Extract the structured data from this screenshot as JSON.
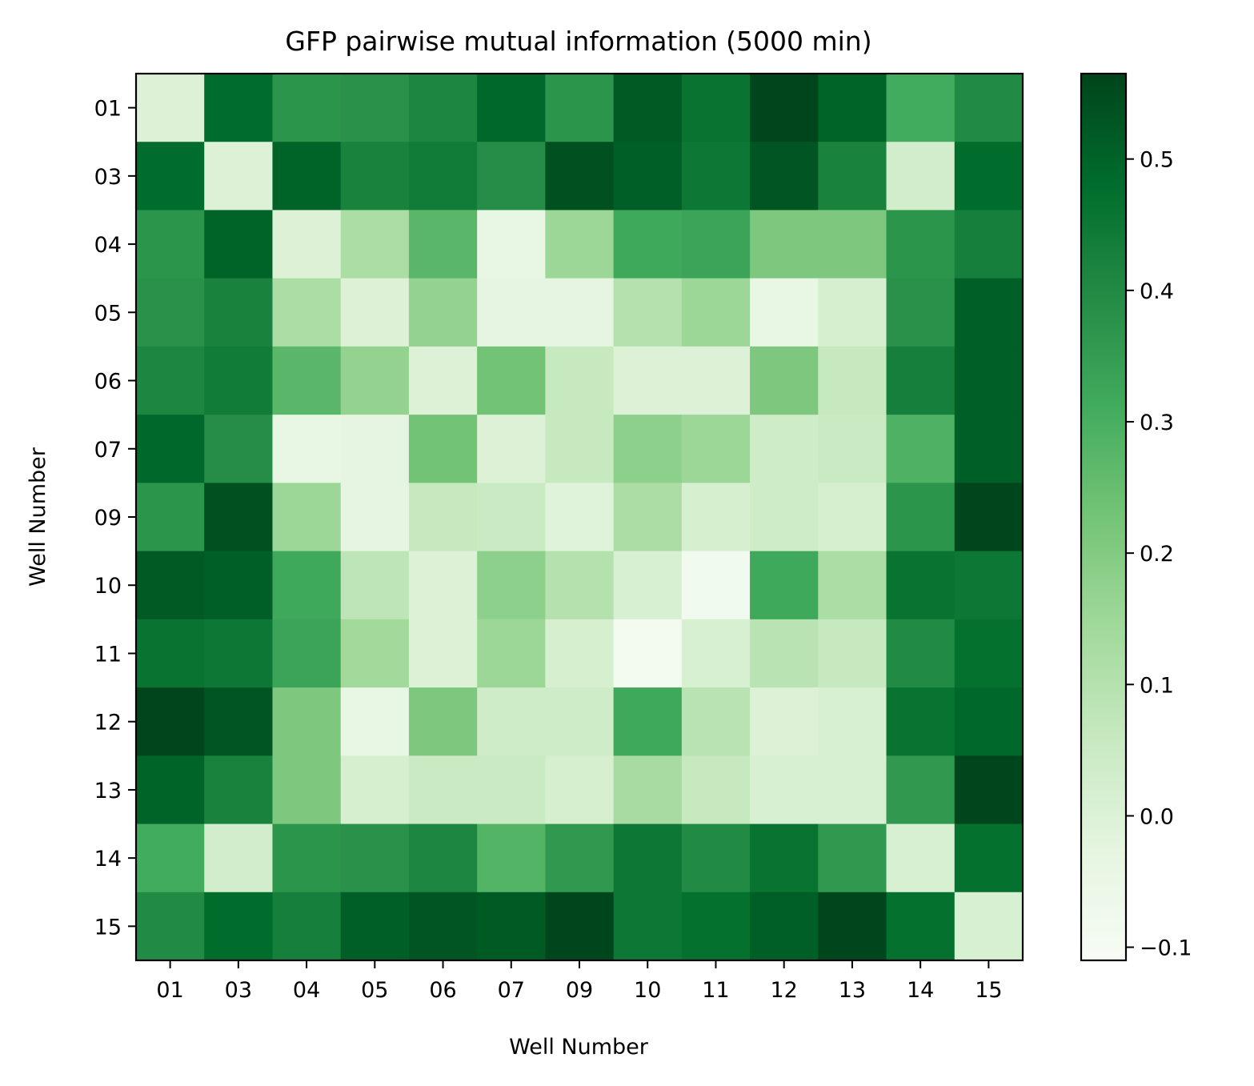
{
  "chart_data": {
    "type": "heatmap",
    "title": "GFP pairwise mutual information (5000 min)",
    "xlabel": "Well Number",
    "ylabel": "Well Number",
    "categories": [
      "01",
      "03",
      "04",
      "05",
      "06",
      "07",
      "09",
      "10",
      "11",
      "12",
      "13",
      "14",
      "15"
    ],
    "colormap": "Greens",
    "colors": [
      "#f7fcf5",
      "#e5f5e0",
      "#c7e9c0",
      "#a1d99b",
      "#74c476",
      "#41ab5d",
      "#238b45",
      "#006d2c",
      "#00441b"
    ],
    "vmin": -0.11,
    "vmax": 0.565,
    "colorbar_ticks": [
      {
        "value": 0.5,
        "label": "0.5"
      },
      {
        "value": 0.4,
        "label": "0.4"
      },
      {
        "value": 0.3,
        "label": "0.3"
      },
      {
        "value": 0.2,
        "label": "0.2"
      },
      {
        "value": 0.1,
        "label": "0.1"
      },
      {
        "value": 0.0,
        "label": "0.0"
      },
      {
        "value": -0.1,
        "label": "−0.1"
      }
    ],
    "values": [
      [
        0.0,
        0.48,
        0.37,
        0.38,
        0.41,
        0.49,
        0.37,
        0.52,
        0.46,
        0.56,
        0.5,
        0.31,
        0.4
      ],
      [
        0.48,
        0.0,
        0.5,
        0.42,
        0.44,
        0.39,
        0.54,
        0.51,
        0.45,
        0.53,
        0.42,
        0.03,
        0.48
      ],
      [
        0.37,
        0.5,
        0.0,
        0.12,
        0.27,
        -0.04,
        0.15,
        0.32,
        0.33,
        0.21,
        0.21,
        0.37,
        0.43
      ],
      [
        0.38,
        0.42,
        0.12,
        0.0,
        0.17,
        -0.03,
        -0.03,
        0.1,
        0.15,
        -0.04,
        0.02,
        0.38,
        0.51
      ],
      [
        0.41,
        0.44,
        0.27,
        0.17,
        0.0,
        0.23,
        0.06,
        0.0,
        0.0,
        0.21,
        0.06,
        0.43,
        0.51
      ],
      [
        0.49,
        0.39,
        -0.04,
        -0.03,
        0.23,
        0.0,
        0.06,
        0.18,
        0.15,
        0.04,
        0.05,
        0.29,
        0.51
      ],
      [
        0.37,
        0.54,
        0.15,
        -0.03,
        0.06,
        0.05,
        -0.01,
        0.12,
        0.02,
        0.04,
        0.02,
        0.37,
        0.56
      ],
      [
        0.52,
        0.51,
        0.32,
        0.08,
        0.0,
        0.18,
        0.1,
        0.01,
        -0.08,
        0.32,
        0.12,
        0.46,
        0.45
      ],
      [
        0.46,
        0.45,
        0.33,
        0.14,
        0.0,
        0.15,
        0.02,
        -0.09,
        0.01,
        0.09,
        0.06,
        0.4,
        0.47
      ],
      [
        0.56,
        0.53,
        0.21,
        -0.04,
        0.21,
        0.04,
        0.04,
        0.32,
        0.09,
        0.0,
        0.01,
        0.46,
        0.49
      ],
      [
        0.5,
        0.42,
        0.21,
        0.02,
        0.05,
        0.05,
        0.02,
        0.13,
        0.06,
        0.01,
        0.01,
        0.36,
        0.56
      ],
      [
        0.31,
        0.03,
        0.37,
        0.38,
        0.41,
        0.28,
        0.36,
        0.45,
        0.4,
        0.46,
        0.36,
        0.01,
        0.47
      ],
      [
        0.4,
        0.48,
        0.43,
        0.51,
        0.53,
        0.52,
        0.56,
        0.45,
        0.47,
        0.51,
        0.56,
        0.47,
        0.01
      ]
    ]
  }
}
